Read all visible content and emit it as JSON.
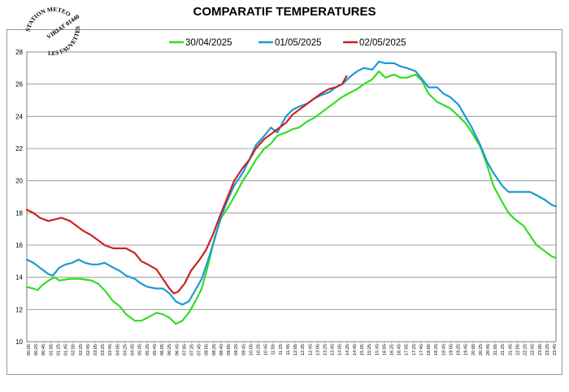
{
  "logo": {
    "lines": [
      "STATION METEO",
      "VIRIAT 01440",
      "LES FAUVETTES"
    ]
  },
  "chart_data": {
    "type": "line",
    "title": "COMPARATIF TEMPERATURES",
    "xlabel": "",
    "ylabel": "",
    "ylim": [
      10,
      28
    ],
    "yticks": [
      10,
      12,
      14,
      16,
      18,
      20,
      22,
      24,
      26,
      28
    ],
    "grid": true,
    "legend_position": "top",
    "x_time_ticks": [
      "00:05",
      "00:25",
      "00:45",
      "01:05",
      "01:25",
      "01:45",
      "02:05",
      "02:25",
      "02:45",
      "03:05",
      "03:25",
      "03:45",
      "04:05",
      "04:25",
      "04:45",
      "05:05",
      "05:25",
      "05:45",
      "06:05",
      "06:25",
      "06:45",
      "07:05",
      "07:25",
      "07:45",
      "08:05",
      "08:25",
      "08:45",
      "09:05",
      "09:25",
      "09:45",
      "10:05",
      "10:25",
      "10:45",
      "11:05",
      "11:25",
      "11:45",
      "12:05",
      "12:25",
      "12:45",
      "13:05",
      "13:25",
      "13:45",
      "14:05",
      "14:25",
      "14:45",
      "15:05",
      "15:25",
      "15:45",
      "16:05",
      "16:25",
      "16:45",
      "17:05",
      "17:25",
      "17:45",
      "18:05",
      "18:25",
      "18:45",
      "19:05",
      "19:25",
      "19:45",
      "20:05",
      "20:25",
      "20:45",
      "21:05",
      "21:25",
      "21:45",
      "22:05",
      "22:25",
      "22:45",
      "23:05",
      "23:25",
      "23:45"
    ],
    "series": [
      {
        "name": "30/04/2025",
        "color": "#33dd22",
        "points": [
          [
            0.0,
            13.4
          ],
          [
            0.3,
            13.3
          ],
          [
            0.5,
            13.2
          ],
          [
            0.7,
            13.5
          ],
          [
            1.0,
            13.8
          ],
          [
            1.3,
            14.0
          ],
          [
            1.5,
            13.8
          ],
          [
            2.0,
            13.9
          ],
          [
            2.5,
            13.9
          ],
          [
            3.0,
            13.8
          ],
          [
            3.3,
            13.6
          ],
          [
            3.6,
            13.2
          ],
          [
            4.0,
            12.5
          ],
          [
            4.3,
            12.2
          ],
          [
            4.6,
            11.7
          ],
          [
            5.0,
            11.3
          ],
          [
            5.3,
            11.3
          ],
          [
            5.6,
            11.5
          ],
          [
            6.0,
            11.8
          ],
          [
            6.3,
            11.7
          ],
          [
            6.6,
            11.5
          ],
          [
            6.9,
            11.1
          ],
          [
            7.2,
            11.3
          ],
          [
            7.5,
            11.8
          ],
          [
            7.8,
            12.5
          ],
          [
            8.1,
            13.3
          ],
          [
            8.4,
            14.8
          ],
          [
            8.7,
            16.5
          ],
          [
            9.0,
            17.7
          ],
          [
            9.3,
            18.3
          ],
          [
            9.6,
            19.0
          ],
          [
            10.0,
            20.0
          ],
          [
            10.3,
            20.6
          ],
          [
            10.6,
            21.3
          ],
          [
            11.0,
            22.0
          ],
          [
            11.3,
            22.3
          ],
          [
            11.6,
            22.8
          ],
          [
            12.0,
            23.0
          ],
          [
            12.3,
            23.2
          ],
          [
            12.6,
            23.3
          ],
          [
            13.0,
            23.7
          ],
          [
            13.3,
            23.9
          ],
          [
            13.6,
            24.2
          ],
          [
            14.0,
            24.6
          ],
          [
            14.3,
            24.9
          ],
          [
            14.6,
            25.2
          ],
          [
            15.0,
            25.5
          ],
          [
            15.3,
            25.7
          ],
          [
            15.6,
            26.0
          ],
          [
            16.0,
            26.3
          ],
          [
            16.3,
            26.8
          ],
          [
            16.6,
            26.4
          ],
          [
            17.0,
            26.6
          ],
          [
            17.3,
            26.4
          ],
          [
            17.6,
            26.4
          ],
          [
            18.0,
            26.6
          ],
          [
            18.3,
            26.2
          ],
          [
            18.6,
            25.4
          ],
          [
            19.0,
            24.9
          ],
          [
            19.3,
            24.7
          ],
          [
            19.6,
            24.5
          ],
          [
            20.0,
            24.0
          ],
          [
            20.3,
            23.6
          ],
          [
            20.6,
            23.0
          ],
          [
            21.0,
            22.1
          ],
          [
            21.3,
            21.0
          ],
          [
            21.6,
            19.7
          ],
          [
            22.0,
            18.7
          ],
          [
            22.3,
            18.0
          ],
          [
            22.6,
            17.6
          ],
          [
            23.0,
            17.2
          ],
          [
            23.3,
            16.6
          ],
          [
            23.6,
            16.0
          ],
          [
            24.0,
            15.6
          ],
          [
            24.3,
            15.3
          ],
          [
            24.5,
            15.2
          ]
        ]
      },
      {
        "name": "01/05/2025",
        "color": "#1a9ad6",
        "points": [
          [
            0.0,
            15.1
          ],
          [
            0.3,
            14.9
          ],
          [
            0.6,
            14.6
          ],
          [
            1.0,
            14.2
          ],
          [
            1.2,
            14.1
          ],
          [
            1.5,
            14.6
          ],
          [
            1.8,
            14.8
          ],
          [
            2.1,
            14.9
          ],
          [
            2.4,
            15.1
          ],
          [
            2.7,
            14.9
          ],
          [
            3.0,
            14.8
          ],
          [
            3.3,
            14.8
          ],
          [
            3.6,
            14.9
          ],
          [
            4.0,
            14.6
          ],
          [
            4.3,
            14.4
          ],
          [
            4.6,
            14.1
          ],
          [
            5.0,
            13.9
          ],
          [
            5.3,
            13.6
          ],
          [
            5.6,
            13.4
          ],
          [
            6.0,
            13.3
          ],
          [
            6.3,
            13.3
          ],
          [
            6.6,
            13.0
          ],
          [
            6.9,
            12.5
          ],
          [
            7.2,
            12.3
          ],
          [
            7.5,
            12.5
          ],
          [
            7.8,
            13.2
          ],
          [
            8.1,
            13.9
          ],
          [
            8.4,
            15.1
          ],
          [
            8.7,
            16.4
          ],
          [
            9.0,
            17.8
          ],
          [
            9.3,
            18.8
          ],
          [
            9.6,
            19.7
          ],
          [
            10.0,
            20.5
          ],
          [
            10.3,
            21.3
          ],
          [
            10.6,
            22.2
          ],
          [
            11.0,
            22.8
          ],
          [
            11.3,
            23.3
          ],
          [
            11.6,
            23.0
          ],
          [
            12.0,
            24.0
          ],
          [
            12.3,
            24.4
          ],
          [
            12.6,
            24.6
          ],
          [
            13.0,
            24.8
          ],
          [
            13.3,
            25.1
          ],
          [
            13.6,
            25.3
          ],
          [
            14.0,
            25.5
          ],
          [
            14.3,
            25.8
          ],
          [
            14.6,
            26.0
          ],
          [
            15.0,
            26.5
          ],
          [
            15.3,
            26.8
          ],
          [
            15.6,
            27.0
          ],
          [
            16.0,
            26.9
          ],
          [
            16.3,
            27.4
          ],
          [
            16.6,
            27.3
          ],
          [
            17.0,
            27.3
          ],
          [
            17.3,
            27.1
          ],
          [
            17.6,
            27.0
          ],
          [
            18.0,
            26.8
          ],
          [
            18.3,
            26.3
          ],
          [
            18.6,
            25.8
          ],
          [
            19.0,
            25.8
          ],
          [
            19.3,
            25.4
          ],
          [
            19.6,
            25.2
          ],
          [
            20.0,
            24.7
          ],
          [
            20.3,
            24.0
          ],
          [
            20.6,
            23.3
          ],
          [
            21.0,
            22.2
          ],
          [
            21.3,
            21.2
          ],
          [
            21.6,
            20.5
          ],
          [
            22.0,
            19.7
          ],
          [
            22.3,
            19.3
          ],
          [
            22.6,
            19.3
          ],
          [
            23.0,
            19.3
          ],
          [
            23.3,
            19.3
          ],
          [
            23.6,
            19.1
          ],
          [
            24.0,
            18.8
          ],
          [
            24.3,
            18.5
          ],
          [
            24.5,
            18.4
          ]
        ]
      },
      {
        "name": "02/05/2025",
        "color": "#cc2222",
        "points": [
          [
            0.0,
            18.2
          ],
          [
            0.3,
            18.0
          ],
          [
            0.6,
            17.7
          ],
          [
            1.0,
            17.5
          ],
          [
            1.3,
            17.6
          ],
          [
            1.6,
            17.7
          ],
          [
            2.0,
            17.5
          ],
          [
            2.3,
            17.2
          ],
          [
            2.6,
            16.9
          ],
          [
            3.0,
            16.6
          ],
          [
            3.3,
            16.3
          ],
          [
            3.6,
            16.0
          ],
          [
            4.0,
            15.8
          ],
          [
            4.3,
            15.8
          ],
          [
            4.6,
            15.8
          ],
          [
            5.0,
            15.5
          ],
          [
            5.3,
            15.0
          ],
          [
            5.6,
            14.8
          ],
          [
            6.0,
            14.5
          ],
          [
            6.3,
            13.9
          ],
          [
            6.6,
            13.3
          ],
          [
            6.8,
            13.0
          ],
          [
            7.0,
            13.1
          ],
          [
            7.3,
            13.6
          ],
          [
            7.6,
            14.4
          ],
          [
            8.0,
            15.1
          ],
          [
            8.3,
            15.7
          ],
          [
            8.6,
            16.6
          ],
          [
            9.0,
            18.0
          ],
          [
            9.3,
            19.0
          ],
          [
            9.6,
            20.0
          ],
          [
            10.0,
            20.8
          ],
          [
            10.3,
            21.3
          ],
          [
            10.6,
            22.0
          ],
          [
            11.0,
            22.6
          ],
          [
            11.3,
            22.9
          ],
          [
            11.6,
            23.2
          ],
          [
            12.0,
            23.6
          ],
          [
            12.3,
            24.1
          ],
          [
            12.6,
            24.4
          ],
          [
            13.0,
            24.8
          ],
          [
            13.3,
            25.1
          ],
          [
            13.6,
            25.4
          ],
          [
            14.0,
            25.7
          ],
          [
            14.3,
            25.8
          ],
          [
            14.6,
            26.0
          ],
          [
            14.8,
            26.5
          ]
        ]
      }
    ]
  }
}
